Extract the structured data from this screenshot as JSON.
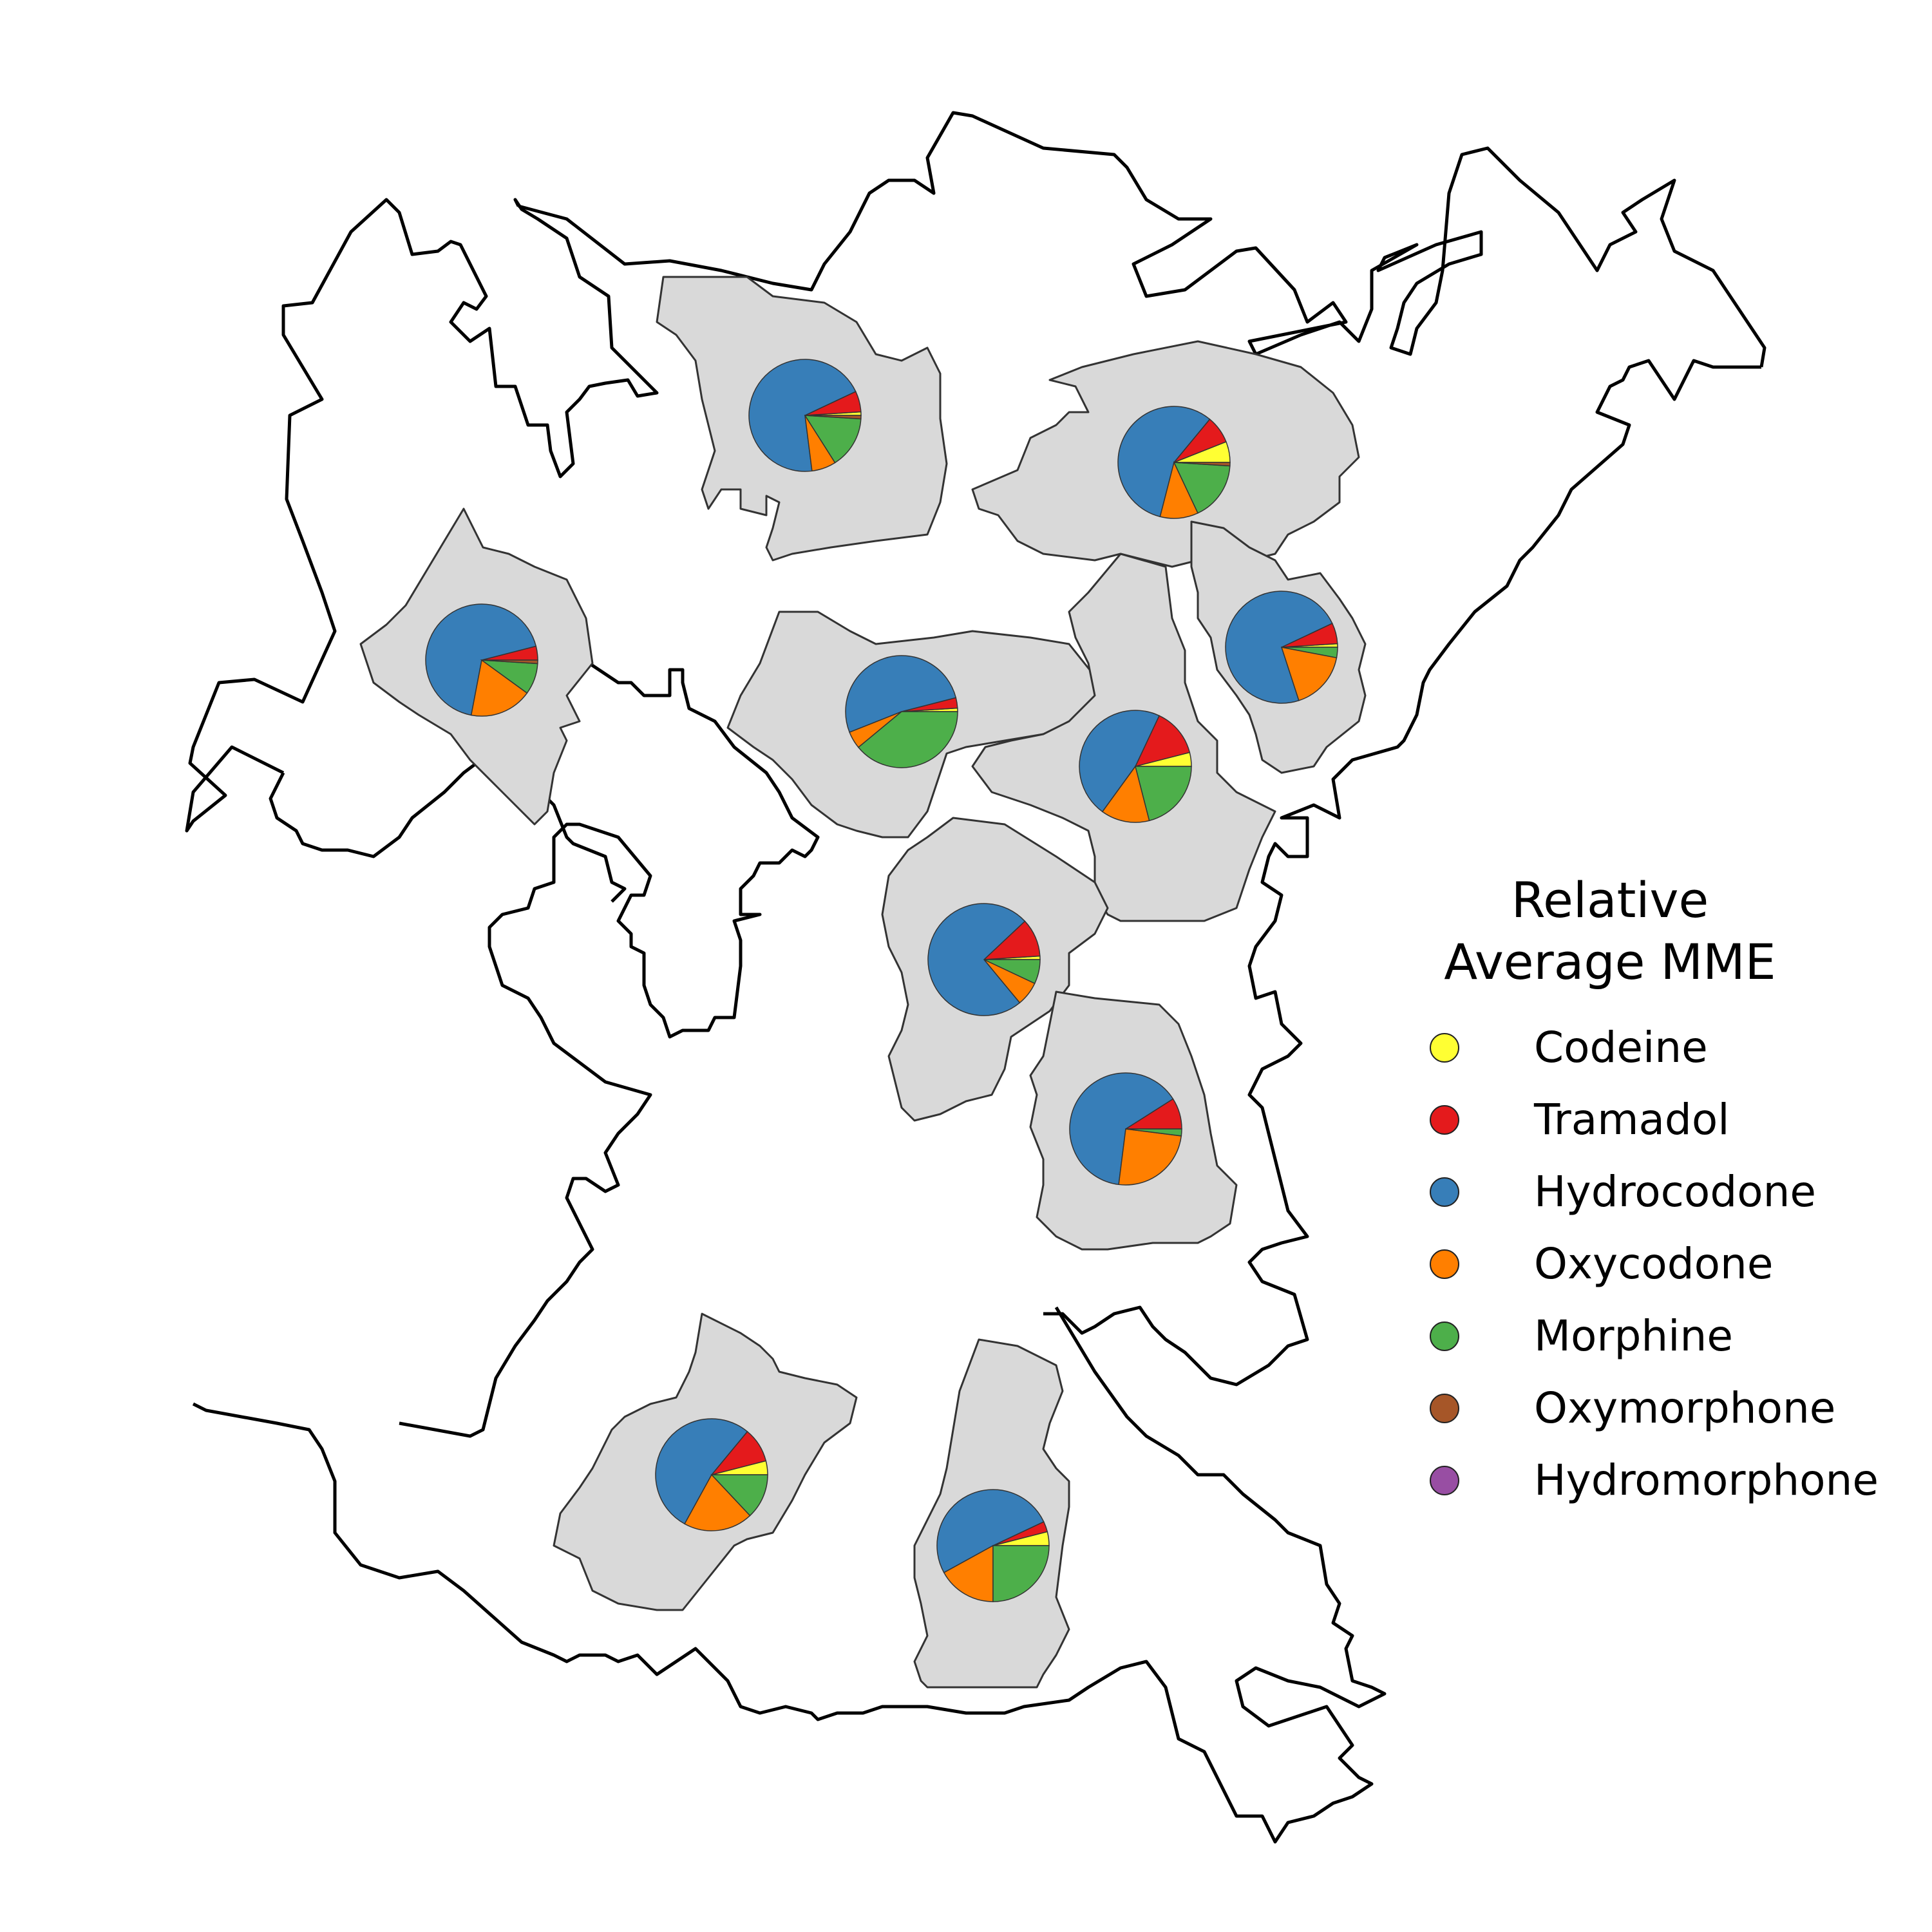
{
  "legend": {
    "title_line1": "Relative",
    "title_line2": "Average MME",
    "items": [
      {
        "label": "Codeine",
        "color": "#ffff33"
      },
      {
        "label": "Tramadol",
        "color": "#e41a1c"
      },
      {
        "label": "Hydrocodone",
        "color": "#377eb8"
      },
      {
        "label": "Oxycodone",
        "color": "#ff7f00"
      },
      {
        "label": "Morphine",
        "color": "#4daf4a"
      },
      {
        "label": "Oxymorphone",
        "color": "#a65628"
      },
      {
        "label": "Hydromorphone",
        "color": "#984ea3"
      }
    ]
  },
  "region_fill": "#d9d9d9",
  "pies": [
    {
      "name": "north-center",
      "values": {
        "Codeine": 1,
        "Tramadol": 6,
        "Hydrocodone": 70,
        "Oxycodone": 7,
        "Morphine": 15,
        "Oxymorphone": 1,
        "Hydromorphone": 0
      }
    },
    {
      "name": "north-east",
      "values": {
        "Codeine": 6,
        "Tramadol": 8,
        "Hydrocodone": 57,
        "Oxycodone": 11,
        "Morphine": 17,
        "Oxymorphone": 1,
        "Hydromorphone": 0
      }
    },
    {
      "name": "west",
      "values": {
        "Codeine": 0,
        "Tramadol": 4,
        "Hydrocodone": 68,
        "Oxycodone": 18,
        "Morphine": 9,
        "Oxymorphone": 1,
        "Hydromorphone": 0
      }
    },
    {
      "name": "central-west",
      "values": {
        "Codeine": 1,
        "Tramadol": 3,
        "Hydrocodone": 52,
        "Oxycodone": 5,
        "Morphine": 39,
        "Oxymorphone": 0,
        "Hydromorphone": 0
      }
    },
    {
      "name": "central-east",
      "values": {
        "Codeine": 4,
        "Tramadol": 14,
        "Hydrocodone": 47,
        "Oxycodone": 14,
        "Morphine": 21,
        "Oxymorphone": 0,
        "Hydromorphone": 0
      }
    },
    {
      "name": "east",
      "values": {
        "Codeine": 1,
        "Tramadol": 6,
        "Hydrocodone": 73,
        "Oxycodone": 17,
        "Morphine": 3,
        "Oxymorphone": 0,
        "Hydromorphone": 0
      }
    },
    {
      "name": "central",
      "values": {
        "Codeine": 1,
        "Tramadol": 11,
        "Hydrocodone": 74,
        "Oxycodone": 7,
        "Morphine": 7,
        "Oxymorphone": 0,
        "Hydromorphone": 0
      }
    },
    {
      "name": "south-center-east",
      "values": {
        "Codeine": 0,
        "Tramadol": 9,
        "Hydrocodone": 64,
        "Oxycodone": 25,
        "Morphine": 2,
        "Oxymorphone": 0,
        "Hydromorphone": 0
      }
    },
    {
      "name": "south-west",
      "values": {
        "Codeine": 4,
        "Tramadol": 10,
        "Hydrocodone": 53,
        "Oxycodone": 20,
        "Morphine": 13,
        "Oxymorphone": 0,
        "Hydromorphone": 0
      }
    },
    {
      "name": "south",
      "values": {
        "Codeine": 4,
        "Tramadol": 3,
        "Hydrocodone": 51,
        "Oxycodone": 17,
        "Morphine": 25,
        "Oxymorphone": 0,
        "Hydromorphone": 0
      }
    }
  ]
}
